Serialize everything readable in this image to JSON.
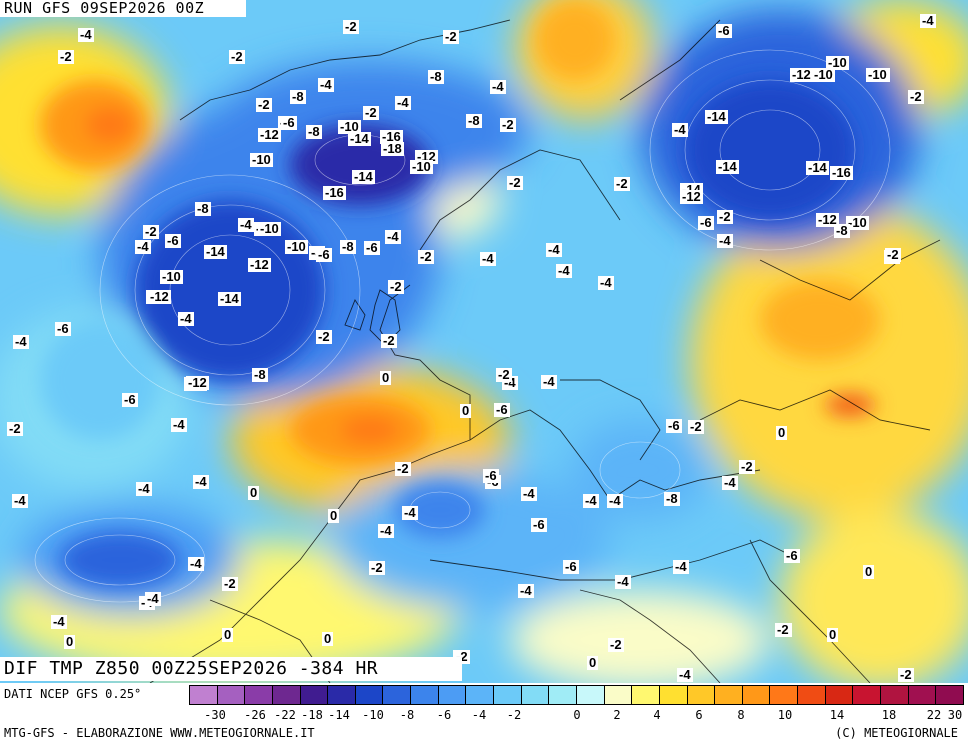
{
  "run_title": "RUN GFS 09SEP2026 00Z",
  "main_title": "DIF TMP Z850 00Z25SEP2026 -384 HR",
  "source": "DATI NCEP GFS 0.25°",
  "credit_left": "MTG-GFS - ELABORAZIONE WWW.METEOGIORNALE.IT",
  "credit_right": "(C) METEOGIORNALE",
  "colorbar": {
    "colors": [
      "#c080d0",
      "#a560c0",
      "#8a3ca8",
      "#6e2890",
      "#401c90",
      "#2a2aa8",
      "#1c46c8",
      "#2c64dc",
      "#3c84ec",
      "#4c9cf4",
      "#5cb4f8",
      "#6ccaf8",
      "#82dcf6",
      "#a0ecf6",
      "#c8f8fa",
      "#fafcc8",
      "#fff870",
      "#ffe030",
      "#ffc828",
      "#ffb020",
      "#ff9818",
      "#ff7818",
      "#f04c14",
      "#d82814",
      "#c81430",
      "#b01440",
      "#a01050",
      "#900c50"
    ],
    "tick_labels": [
      "-30",
      "-26",
      "-22",
      "-18",
      "-14",
      "-10",
      "-8",
      "-6",
      "-4",
      "-2",
      "0",
      "2",
      "4",
      "6",
      "8",
      "10",
      "14",
      "18",
      "22",
      "30"
    ]
  },
  "contour_labels": [
    {
      "t": "-4"
    },
    {
      "t": "-2"
    },
    {
      "t": "-2"
    },
    {
      "t": "-2"
    },
    {
      "t": "-6"
    },
    {
      "t": "-2"
    },
    {
      "t": "-8"
    },
    {
      "t": "-4"
    },
    {
      "t": "-4"
    },
    {
      "t": "-2"
    },
    {
      "t": "-8"
    },
    {
      "t": "-6"
    },
    {
      "t": "-2"
    },
    {
      "t": "-4"
    },
    {
      "t": "-2"
    },
    {
      "t": "-4"
    },
    {
      "t": "-12"
    },
    {
      "t": "-8"
    },
    {
      "t": "-10"
    },
    {
      "t": "-14"
    },
    {
      "t": "-16"
    },
    {
      "t": "-18"
    },
    {
      "t": "-12"
    },
    {
      "t": "-10"
    },
    {
      "t": "-8"
    },
    {
      "t": "-2"
    },
    {
      "t": "-14"
    },
    {
      "t": "-12"
    },
    {
      "t": "-10"
    },
    {
      "t": "-4"
    },
    {
      "t": "-10"
    },
    {
      "t": "-10"
    },
    {
      "t": "-4"
    },
    {
      "t": "-6"
    },
    {
      "t": "-14"
    },
    {
      "t": "-16"
    },
    {
      "t": "-10"
    },
    {
      "t": "-14"
    },
    {
      "t": "-14"
    },
    {
      "t": "-16"
    },
    {
      "t": "-2"
    },
    {
      "t": "-2"
    },
    {
      "t": "-14"
    },
    {
      "t": "-12"
    },
    {
      "t": "-12"
    },
    {
      "t": "-10"
    },
    {
      "t": "-8"
    },
    {
      "t": "-6"
    },
    {
      "t": "-10"
    },
    {
      "t": "-8"
    },
    {
      "t": "-6"
    },
    {
      "t": "-2"
    },
    {
      "t": "-4"
    },
    {
      "t": "-2"
    },
    {
      "t": "-10"
    },
    {
      "t": "-10"
    },
    {
      "t": "-4"
    },
    {
      "t": "-14"
    },
    {
      "t": "-12"
    },
    {
      "t": "-12"
    },
    {
      "t": "-4"
    },
    {
      "t": "-4"
    },
    {
      "t": "-6"
    },
    {
      "t": "-4"
    },
    {
      "t": "-2"
    },
    {
      "t": "-8"
    },
    {
      "t": "-4"
    },
    {
      "t": "-8"
    },
    {
      "t": "-6"
    },
    {
      "t": "-4"
    },
    {
      "t": "-2"
    },
    {
      "t": "-4"
    },
    {
      "t": "-10"
    },
    {
      "t": "-12"
    },
    {
      "t": "-14"
    },
    {
      "t": "-4"
    },
    {
      "t": "-2"
    },
    {
      "t": "-12"
    },
    {
      "t": "-2"
    },
    {
      "t": "-6"
    },
    {
      "t": "-4"
    },
    {
      "t": "0"
    },
    {
      "t": "-2"
    },
    {
      "t": "-6"
    },
    {
      "t": "-2"
    },
    {
      "t": "-4"
    },
    {
      "t": "-4"
    },
    {
      "t": "-4"
    },
    {
      "t": "-6"
    },
    {
      "t": "-12"
    },
    {
      "t": "-8"
    },
    {
      "t": "-2"
    },
    {
      "t": "-4"
    },
    {
      "t": "0"
    },
    {
      "t": "0"
    },
    {
      "t": "-6"
    },
    {
      "t": "-4"
    },
    {
      "t": "-2"
    },
    {
      "t": "-4"
    },
    {
      "t": "0"
    },
    {
      "t": "-2"
    },
    {
      "t": "-2"
    },
    {
      "t": "-6"
    },
    {
      "t": "-4"
    },
    {
      "t": "-4"
    },
    {
      "t": "-4"
    },
    {
      "t": "-4"
    },
    {
      "t": "-4"
    },
    {
      "t": "-6"
    },
    {
      "t": "-6"
    },
    {
      "t": "-6"
    },
    {
      "t": "0"
    },
    {
      "t": "-4"
    },
    {
      "t": "-4"
    },
    {
      "t": "-4"
    },
    {
      "t": "-4"
    },
    {
      "t": "-2"
    },
    {
      "t": "-4"
    },
    {
      "t": "-4"
    },
    {
      "t": "-6"
    },
    {
      "t": "-4"
    },
    {
      "t": "-8"
    },
    {
      "t": "-2"
    },
    {
      "t": "-4"
    },
    {
      "t": "-2"
    },
    {
      "t": "0"
    },
    {
      "t": "-2"
    },
    {
      "t": "0"
    },
    {
      "t": "0"
    },
    {
      "t": "-2"
    },
    {
      "t": "-4"
    },
    {
      "t": "-2"
    },
    {
      "t": "0"
    },
    {
      "t": "-2"
    },
    {
      "t": "-2"
    },
    {
      "t": "0"
    },
    {
      "t": "-2"
    },
    {
      "t": "0"
    }
  ]
}
